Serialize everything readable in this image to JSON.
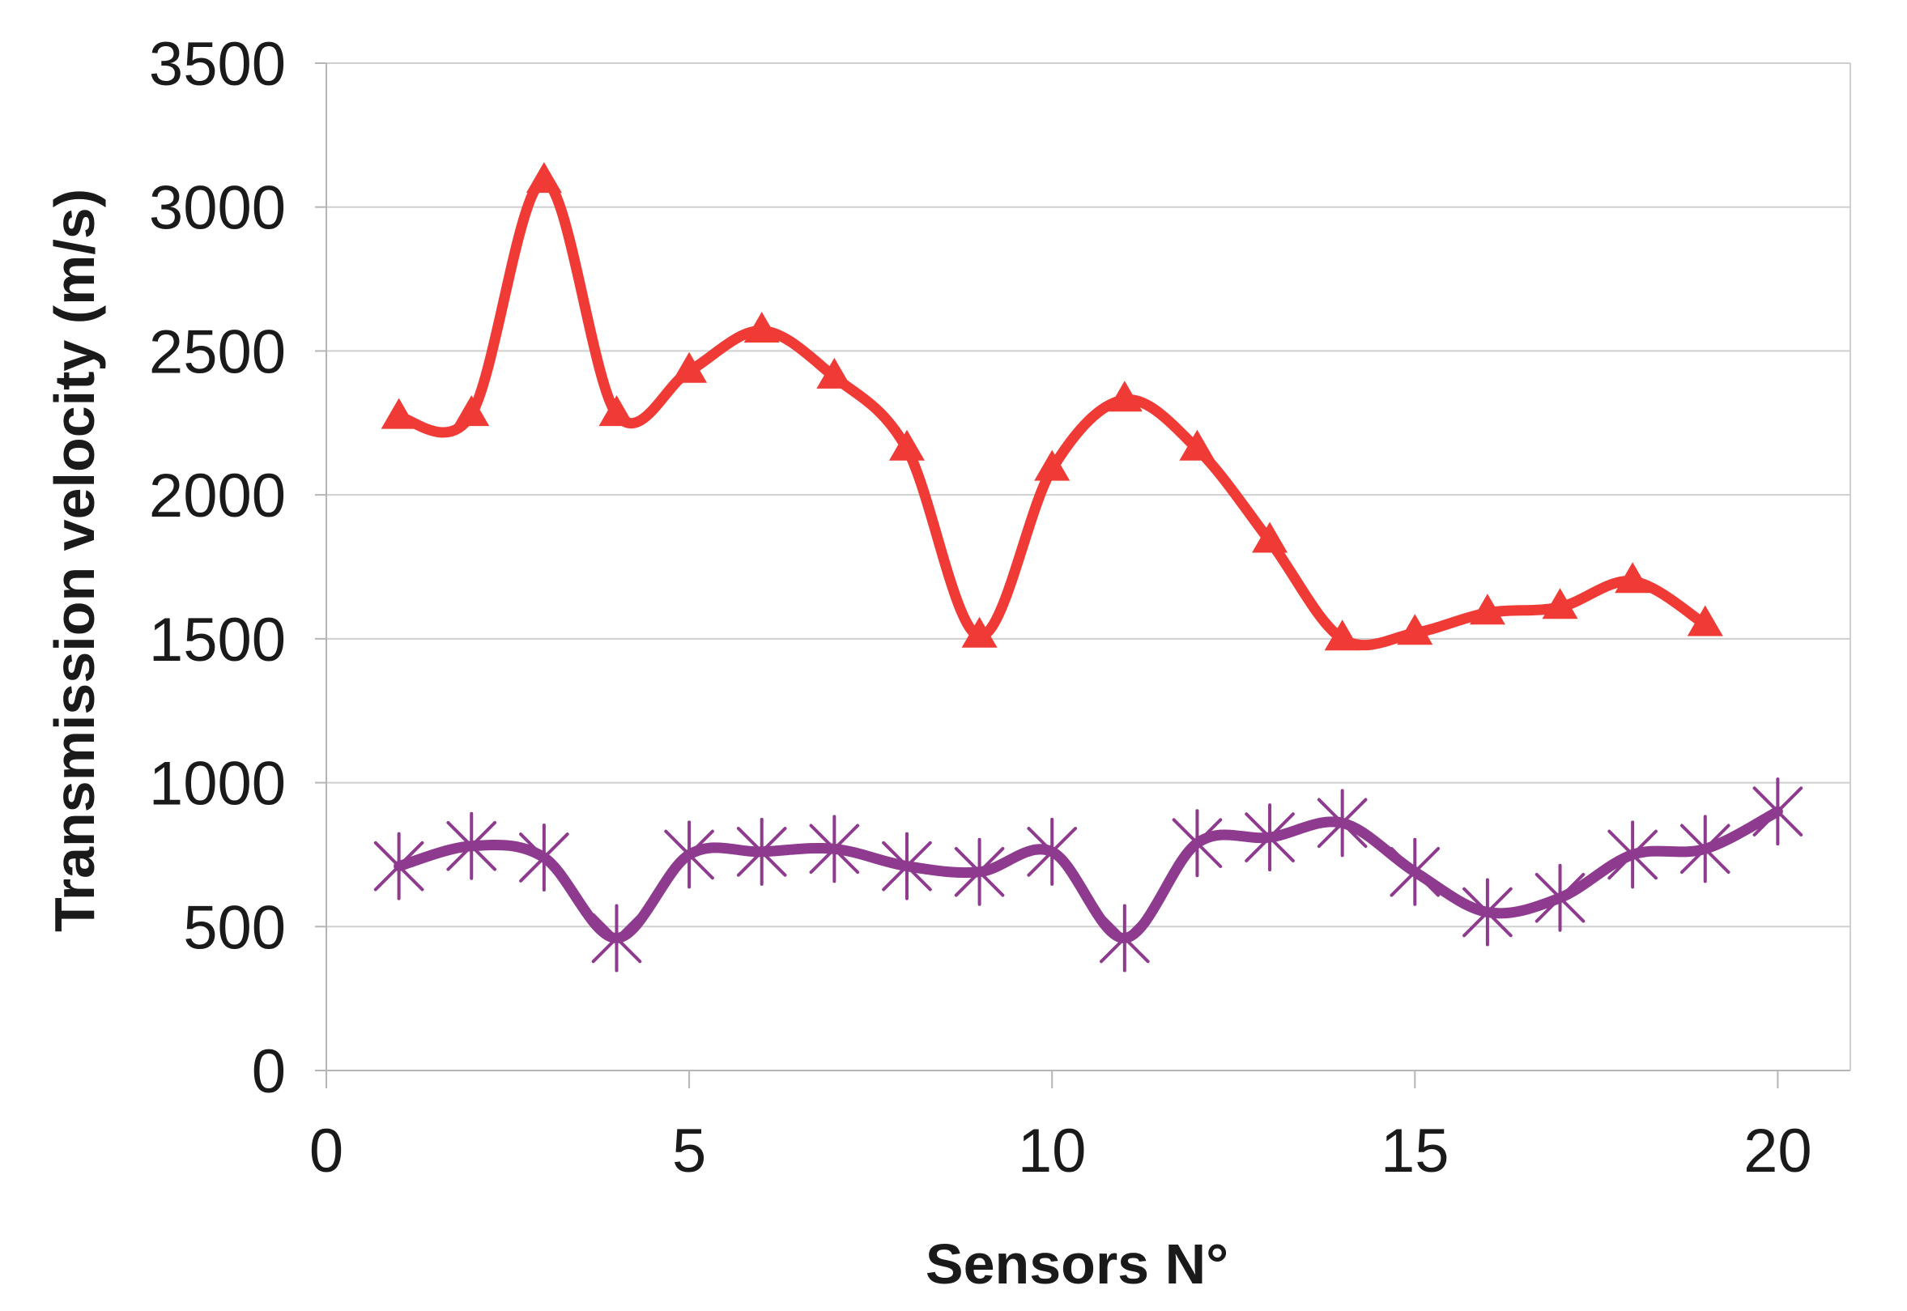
{
  "chart_data": {
    "type": "line",
    "title": "",
    "xlabel": "Sensors N°",
    "ylabel": "Transmission velocity (m/s)",
    "xlim": [
      0,
      21
    ],
    "ylim": [
      0,
      3500
    ],
    "xticks": [
      0,
      5,
      10,
      15,
      20
    ],
    "yticks": [
      0,
      500,
      1000,
      1500,
      2000,
      2500,
      3000,
      3500
    ],
    "grid": true,
    "legend": "none",
    "series": [
      {
        "color": "#f03a36",
        "marker": "triangle",
        "x": [
          1,
          2,
          3,
          4,
          5,
          6,
          7,
          8,
          9,
          10,
          11,
          12,
          13,
          14,
          15,
          16,
          17,
          18,
          19
        ],
        "values": [
          2270,
          2280,
          3090,
          2280,
          2430,
          2570,
          2410,
          2160,
          1510,
          2090,
          2330,
          2160,
          1840,
          1500,
          1520,
          1590,
          1610,
          1700,
          1550
        ]
      },
      {
        "color": "#8e3a8e",
        "marker": "star",
        "x": [
          1,
          2,
          3,
          4,
          5,
          6,
          7,
          8,
          9,
          10,
          11,
          12,
          13,
          14,
          15,
          16,
          17,
          18,
          19,
          20
        ],
        "values": [
          710,
          780,
          740,
          460,
          750,
          760,
          770,
          710,
          690,
          760,
          460,
          790,
          810,
          860,
          690,
          550,
          600,
          750,
          770,
          900
        ]
      }
    ]
  }
}
